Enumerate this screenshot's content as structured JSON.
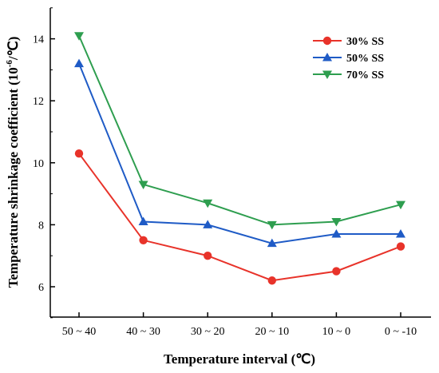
{
  "chart_data": {
    "type": "line",
    "title": "",
    "xlabel": "Temperature interval (℃)",
    "ylabel_main": "Temperature shrinkage coefficient (10",
    "ylabel_sup": "-6",
    "ylabel_end": "/℃)",
    "categories": [
      "50 ~ 40",
      "40 ~ 30",
      "30 ~ 20",
      "20 ~ 10",
      "10 ~ 0",
      "0 ~ -10"
    ],
    "yticks": [
      "6",
      "8",
      "10",
      "12",
      "14"
    ],
    "ylim": [
      5.0,
      15.2
    ],
    "legend_position": "top-right",
    "series": [
      {
        "name": "30% SS",
        "color": "#e8332a",
        "marker": "circle",
        "values": [
          10.3,
          7.5,
          7.0,
          6.2,
          6.5,
          7.3
        ]
      },
      {
        "name": "50% SS",
        "color": "#1f5bc6",
        "marker": "triangle-up",
        "values": [
          13.2,
          8.1,
          8.0,
          7.4,
          7.7,
          7.7
        ]
      },
      {
        "name": "70% SS",
        "color": "#2e9e4f",
        "marker": "triangle-down",
        "values": [
          14.1,
          9.3,
          8.7,
          8.0,
          8.1,
          8.65
        ]
      }
    ]
  }
}
